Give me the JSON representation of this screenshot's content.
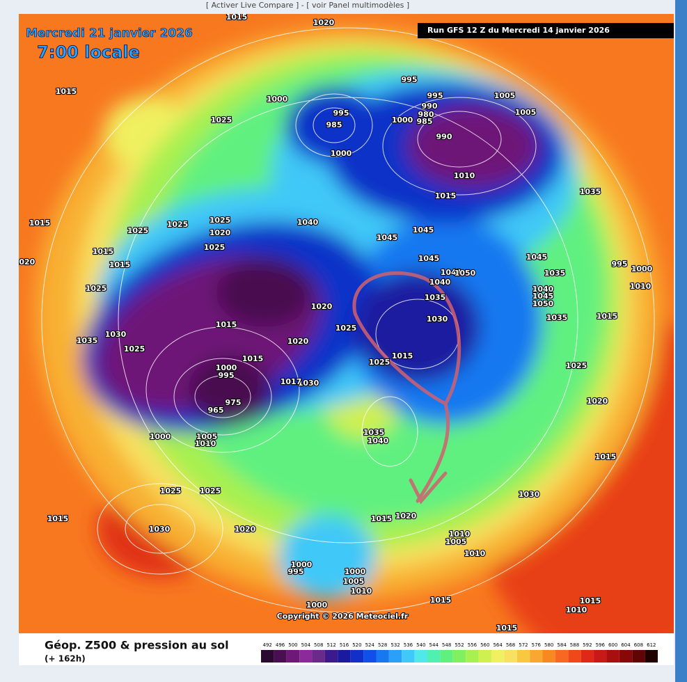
{
  "header": {
    "links": "[ Activer Live Compare ] - [ voir Panel multimodèles ]"
  },
  "map": {
    "date": "Mercredi 21 janvier 2026",
    "time": "7:00 locale",
    "run": "Run GFS 12 Z du Mercredi 14 janvier 2026",
    "copyright": "Copyright © 2026 Meteociel.fr",
    "pressure_labels": [
      1015,
      1020,
      1015,
      1025,
      1000,
      995,
      985,
      1000,
      995,
      995,
      990,
      980,
      985,
      1000,
      990,
      1005,
      1005,
      1010,
      1015,
      1035,
      1015,
      1025,
      1025,
      1025,
      1020,
      1040,
      1045,
      1045,
      1025,
      1015,
      1015,
      1045,
      1045,
      1035,
      995,
      1000,
      1010,
      1041,
      1050,
      1040,
      1040,
      1045,
      1050,
      1035,
      1025,
      1020,
      1030,
      1035,
      1015,
      1015,
      1025,
      1030,
      1020,
      1035,
      1025,
      1015,
      1015,
      1025,
      1000,
      995,
      1025,
      1030,
      1017,
      975,
      965,
      1020,
      1000,
      1005,
      1010,
      1035,
      1040,
      1015,
      1025,
      1025,
      1030,
      1015,
      1030,
      1020,
      1015,
      1020,
      1010,
      1005,
      1010,
      1000,
      995,
      1000,
      1005,
      1010,
      1015,
      1000,
      1015,
      1010,
      1015,
      1020
    ]
  },
  "footer": {
    "title": "Géop. Z500 & pression au sol",
    "lead": "(+ 162h)",
    "scale": {
      "labels": [
        492,
        496,
        500,
        504,
        508,
        512,
        516,
        520,
        524,
        528,
        532,
        536,
        540,
        544,
        548,
        552,
        556,
        560,
        564,
        568,
        572,
        576,
        580,
        584,
        588,
        592,
        596,
        600,
        604,
        608,
        612
      ],
      "colors": [
        "#2a0a30",
        "#4a0f50",
        "#6e1878",
        "#8c2a9c",
        "#6a2a8a",
        "#3a1a8c",
        "#1a1aa0",
        "#1030c8",
        "#1050e8",
        "#1878f0",
        "#2aa0f8",
        "#40c8f8",
        "#50e8e8",
        "#50f0b0",
        "#60f080",
        "#80f060",
        "#a8f050",
        "#d0f050",
        "#f0f060",
        "#f8e060",
        "#f8c840",
        "#f8a830",
        "#f88820",
        "#f86820",
        "#f04818",
        "#e02818",
        "#c81818",
        "#a81010",
        "#880808",
        "#600404",
        "#200000"
      ]
    }
  }
}
